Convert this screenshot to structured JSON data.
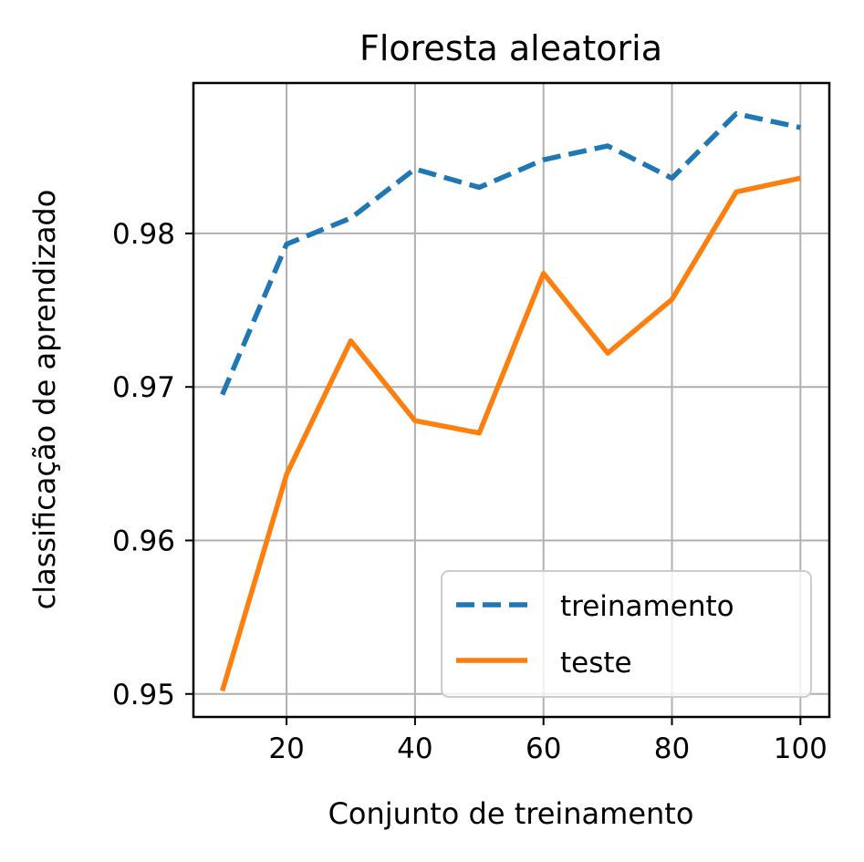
{
  "chart_data": {
    "type": "line",
    "title": "Floresta aleatoria",
    "xlabel": "Conjunto de treinamento",
    "ylabel": "classificação de aprendizado",
    "x": [
      10,
      20,
      30,
      40,
      50,
      60,
      70,
      80,
      90,
      100
    ],
    "xticks": [
      20,
      40,
      60,
      80,
      100
    ],
    "yticks": [
      0.95,
      0.96,
      0.97,
      0.98
    ],
    "xlim": [
      5.5,
      104.5
    ],
    "ylim": [
      0.9485,
      0.9898
    ],
    "grid": true,
    "legend_position": "lower-right",
    "series": [
      {
        "name": "treinamento",
        "style": "dashed",
        "color": "#1f77b4",
        "values": [
          0.9695,
          0.9793,
          0.981,
          0.9842,
          0.983,
          0.9848,
          0.9857,
          0.9836,
          0.9878,
          0.9869
        ]
      },
      {
        "name": "teste",
        "style": "solid",
        "color": "#ff7f0e",
        "values": [
          0.9502,
          0.9643,
          0.973,
          0.9678,
          0.967,
          0.9774,
          0.9722,
          0.9757,
          0.9827,
          0.9836
        ]
      }
    ]
  }
}
